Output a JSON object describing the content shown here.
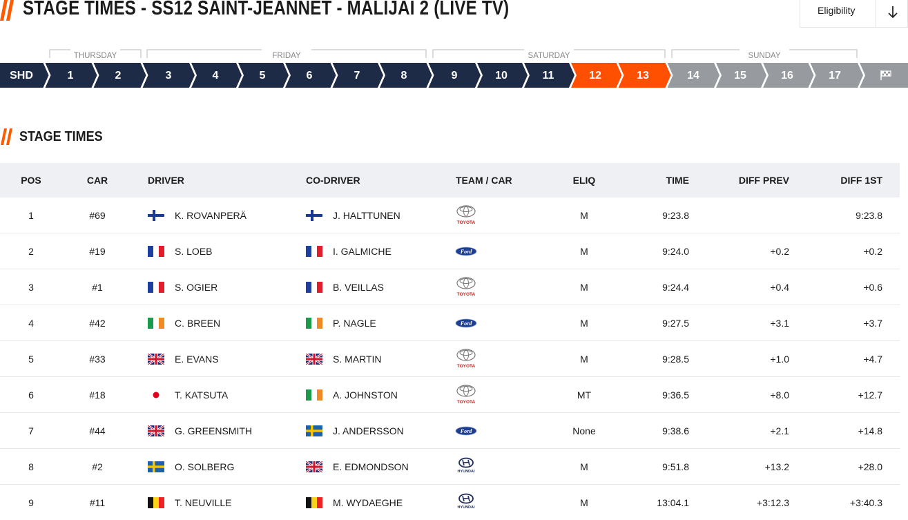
{
  "header": {
    "title": "STAGE TIMES - SS12 SAINT-JEANNET - MALIJAI 2 (LIVE TV)",
    "eligibility": "Eligibility"
  },
  "days": [
    "THURSDAY",
    "FRIDAY",
    "SATURDAY",
    "SUNDAY"
  ],
  "stages": [
    "SHD",
    "1",
    "2",
    "3",
    "4",
    "5",
    "6",
    "7",
    "8",
    "9",
    "10",
    "11",
    "12",
    "13",
    "14",
    "15",
    "16",
    "17"
  ],
  "section_title": "STAGE TIMES",
  "table": {
    "columns": [
      "POS",
      "CAR",
      "DRIVER",
      "CO-DRIVER",
      "TEAM / CAR",
      "ELIQ",
      "TIME",
      "DIFF PREV",
      "DIFF 1ST"
    ],
    "rows": [
      {
        "pos": "1",
        "car": "#69",
        "driver": "K. ROVANPERÄ",
        "co_driver": "J. HALTTUNEN",
        "team": "TOYOTA",
        "eliq": "M",
        "time": "9:23.8",
        "diff_prev": null,
        "diff_1st": "9:23.8"
      },
      {
        "pos": "2",
        "car": "#19",
        "driver": "S. LOEB",
        "co_driver": "I. GALMICHE",
        "team": "Ford",
        "eliq": "M",
        "time": "9:24.0",
        "diff_prev": "+0.2",
        "diff_1st": "+0.2"
      },
      {
        "pos": "3",
        "car": "#1",
        "driver": "S. OGIER",
        "co_driver": "B. VEILLAS",
        "team": "TOYOTA",
        "eliq": "M",
        "time": "9:24.4",
        "diff_prev": "+0.4",
        "diff_1st": "+0.6"
      },
      {
        "pos": "4",
        "car": "#42",
        "driver": "C. BREEN",
        "co_driver": "P. NAGLE",
        "team": "Ford",
        "eliq": "M",
        "time": "9:27.5",
        "diff_prev": "+3.1",
        "diff_1st": "+3.7"
      },
      {
        "pos": "5",
        "car": "#33",
        "driver": "E. EVANS",
        "co_driver": "S. MARTIN",
        "team": "TOYOTA",
        "eliq": "M",
        "time": "9:28.5",
        "diff_prev": "+1.0",
        "diff_1st": "+4.7"
      },
      {
        "pos": "6",
        "car": "#18",
        "driver": "T. KATSUTA",
        "co_driver": "A. JOHNSTON",
        "team": "TOYOTA",
        "eliq": "MT",
        "time": "9:36.5",
        "diff_prev": "+8.0",
        "diff_1st": "+12.7"
      },
      {
        "pos": "7",
        "car": "#44",
        "driver": "G. GREENSMITH",
        "co_driver": "J. ANDERSSON",
        "team": "Ford",
        "eliq": "None",
        "time": "9:38.6",
        "diff_prev": "+2.1",
        "diff_1st": "+14.8"
      },
      {
        "pos": "8",
        "car": "#2",
        "driver": "O. SOLBERG",
        "co_driver": "E. EDMONDSON",
        "team": "HYUNDAI",
        "eliq": "M",
        "time": "9:51.8",
        "diff_prev": "+13.2",
        "diff_1st": "+28.0"
      },
      {
        "pos": "9",
        "car": "#11",
        "driver": "T. NEUVILLE",
        "co_driver": "M. WYDAEGHE",
        "team": "HYUNDAI",
        "eliq": "M",
        "time": "13:04.1",
        "diff_prev": "+3:12.3",
        "diff_1st": "+3:40.3"
      }
    ]
  }
}
